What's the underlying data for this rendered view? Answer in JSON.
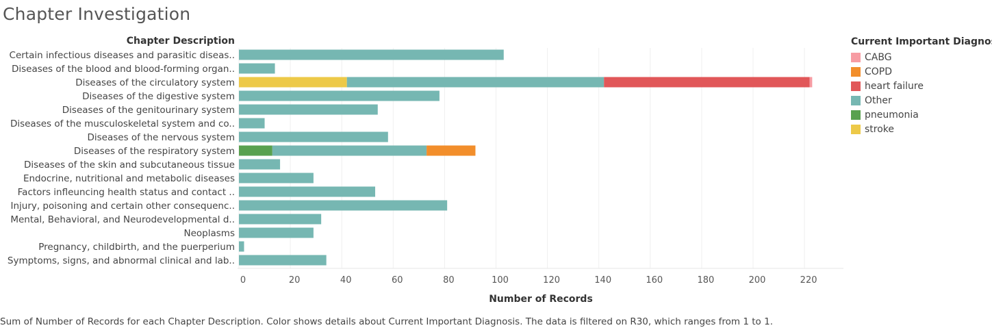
{
  "page": {
    "title": "Chapter Investigation",
    "footnote": "Sum of Number of Records for each Chapter Description.  Color shows details about Current Important Diagnosis. The data is filtered on R30, which ranges from 1 to 1."
  },
  "legend": {
    "title": "Current Important Diagnosis",
    "items": [
      {
        "label": "CABG",
        "color": "#f79ca3"
      },
      {
        "label": "COPD",
        "color": "#f28e2b"
      },
      {
        "label": "heart failure",
        "color": "#e15759"
      },
      {
        "label": "Other",
        "color": "#76b7b2"
      },
      {
        "label": "pneumonia",
        "color": "#59a14f"
      },
      {
        "label": "stroke",
        "color": "#edc948"
      }
    ]
  },
  "chart_data": {
    "type": "bar",
    "orientation": "horizontal",
    "stacked": true,
    "row_header": "Chapter Description",
    "xlabel": "Number of Records",
    "xlim": [
      0,
      235
    ],
    "xticks": [
      0,
      20,
      40,
      60,
      80,
      100,
      120,
      140,
      160,
      180,
      200,
      220
    ],
    "grid": true,
    "legend_position": "right",
    "categories": [
      "Certain infectious diseases and parasitic diseas..",
      "Diseases of the blood and blood-forming organ..",
      "Diseases of the circulatory system",
      "Diseases of the digestive system",
      "Diseases of the genitourinary system",
      "Diseases of the musculoskeletal system and co..",
      "Diseases of the nervous system",
      "Diseases of the respiratory system",
      "Diseases of the skin and subcutaneous tissue",
      "Endocrine, nutritional and metabolic diseases",
      "Factors infleuncing health status and contact ..",
      "Injury, poisoning and certain other consequenc..",
      "Mental, Behavioral, and Neurodevelopmental d..",
      "Neoplasms",
      "Pregnancy, childbirth, and the puerperium",
      "Symptoms, signs, and abnormal clinical and lab.."
    ],
    "series": [
      {
        "name": "pneumonia",
        "values": [
          0,
          0,
          0,
          0,
          0,
          0,
          0,
          13,
          0,
          0,
          0,
          0,
          0,
          0,
          0,
          0
        ]
      },
      {
        "name": "stroke",
        "values": [
          0,
          0,
          42,
          0,
          0,
          0,
          0,
          0,
          0,
          0,
          0,
          0,
          0,
          0,
          0,
          0
        ]
      },
      {
        "name": "Other",
        "values": [
          103,
          14,
          100,
          78,
          54,
          10,
          58,
          60,
          16,
          29,
          53,
          81,
          32,
          29,
          2,
          34
        ]
      },
      {
        "name": "COPD",
        "values": [
          0,
          0,
          0,
          0,
          0,
          0,
          0,
          19,
          0,
          0,
          0,
          0,
          0,
          0,
          0,
          0
        ]
      },
      {
        "name": "heart failure",
        "values": [
          0,
          0,
          80,
          0,
          0,
          0,
          0,
          0,
          0,
          0,
          0,
          0,
          0,
          0,
          0,
          0
        ]
      },
      {
        "name": "CABG",
        "values": [
          0,
          0,
          1,
          0,
          0,
          0,
          0,
          0,
          0,
          0,
          0,
          0,
          0,
          0,
          0,
          0
        ]
      }
    ]
  }
}
